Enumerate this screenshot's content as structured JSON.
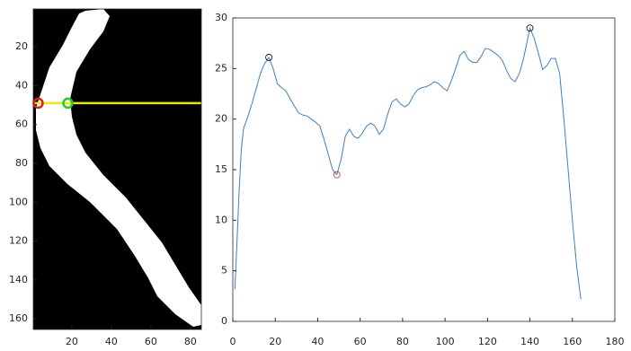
{
  "chart_data": [
    {
      "type": "image",
      "xlim": [
        0.5,
        85.5
      ],
      "ylim": [
        0.5,
        165.5
      ],
      "y_reversed": true,
      "xticks": [
        20,
        40,
        60,
        80
      ],
      "yticks": [
        20,
        40,
        60,
        80,
        100,
        120,
        140,
        160
      ],
      "hline": 49,
      "hline_color": "#e8e800",
      "markers": [
        {
          "x": 3,
          "y": 49,
          "color": "#e02020"
        },
        {
          "x": 18,
          "y": 49,
          "color": "#20d020"
        }
      ]
    },
    {
      "type": "line",
      "xlim": [
        0,
        180
      ],
      "ylim": [
        0,
        30
      ],
      "xticks": [
        0,
        20,
        40,
        60,
        80,
        100,
        120,
        140,
        160,
        180
      ],
      "yticks": [
        0,
        5,
        10,
        15,
        20,
        25,
        30
      ],
      "color": "#3d7fc4",
      "x": [
        1,
        2,
        3,
        4,
        5,
        7,
        9,
        11,
        13,
        15,
        17,
        19,
        21,
        23,
        25,
        27,
        29,
        31,
        33,
        35,
        37,
        39,
        41,
        43,
        45,
        47,
        49,
        51,
        53,
        55,
        57,
        59,
        61,
        63,
        65,
        67,
        69,
        71,
        73,
        75,
        77,
        79,
        81,
        83,
        85,
        87,
        89,
        91,
        93,
        95,
        97,
        99,
        101,
        103,
        105,
        107,
        109,
        111,
        113,
        115,
        117,
        119,
        121,
        123,
        125,
        127,
        129,
        131,
        133,
        135,
        137,
        139,
        140,
        142,
        144,
        146,
        148,
        150,
        152,
        154,
        156,
        158,
        160,
        162,
        164
      ],
      "y": [
        3.2,
        8,
        13,
        17,
        19,
        20.2,
        21.5,
        23,
        24.5,
        25.5,
        26.1,
        25,
        23.5,
        23.1,
        22.8,
        22,
        21.3,
        20.6,
        20.4,
        20.3,
        20,
        19.7,
        19.3,
        18,
        16.5,
        15,
        14.5,
        16,
        18.3,
        19,
        18.3,
        18.1,
        18.6,
        19.3,
        19.6,
        19.3,
        18.5,
        19,
        20.5,
        21.7,
        22,
        21.5,
        21.2,
        21.5,
        22.3,
        22.9,
        23.1,
        23.2,
        23.4,
        23.7,
        23.5,
        23.1,
        22.8,
        23.8,
        25,
        26.3,
        26.7,
        25.9,
        25.6,
        25.6,
        26.2,
        27,
        26.9,
        26.6,
        26.3,
        25.8,
        24.8,
        24,
        23.7,
        24.5,
        26,
        28,
        29,
        28,
        26.5,
        24.9,
        25.3,
        26,
        26,
        24.5,
        20,
        15,
        10,
        5.5,
        2.2
      ],
      "markers": [
        {
          "x": 17,
          "y": 26.1,
          "color": "#000000"
        },
        {
          "x": 49,
          "y": 14.5,
          "color": "#e02020"
        },
        {
          "x": 140,
          "y": 29,
          "color": "#000000"
        }
      ]
    }
  ]
}
